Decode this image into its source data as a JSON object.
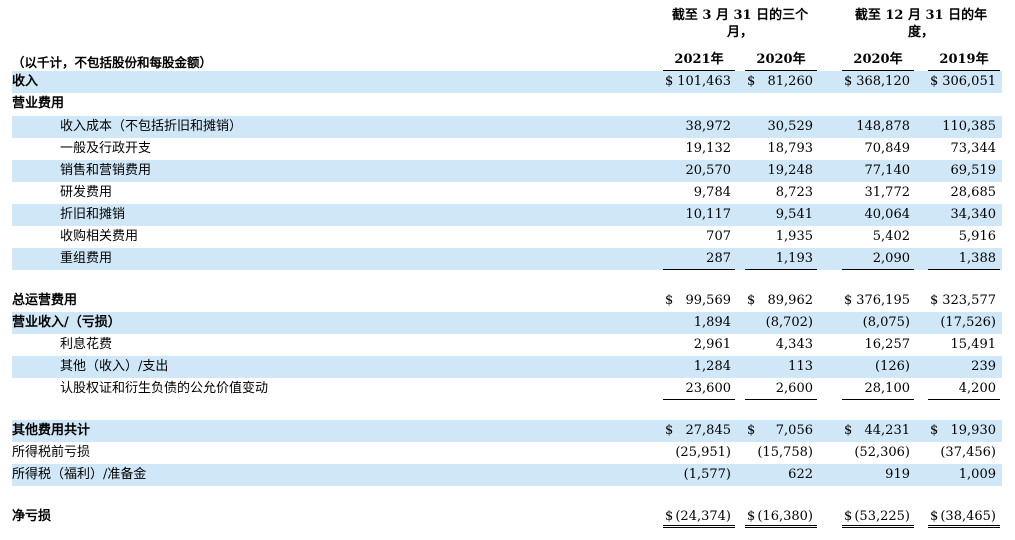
{
  "header": {
    "group_q1": "截至 3 月 31 日的三个月，",
    "group_fy": "截至 12 月 31 日的年度，",
    "units_note": "（以千计，不包括股份和每股金额）",
    "columns": [
      "2021年",
      "2020年",
      "2020年",
      "2019年"
    ]
  },
  "rows": [
    {
      "label": "收入",
      "values": [
        "101,463",
        "81,260",
        "368,120",
        "306,051"
      ],
      "dollar": true
    },
    {
      "label": "营业费用",
      "values": [
        "",
        "",
        "",
        ""
      ]
    },
    {
      "label": "收入成本（不包括折旧和摊销）",
      "values": [
        "38,972",
        "30,529",
        "148,878",
        "110,385"
      ]
    },
    {
      "label": "一般及行政开支",
      "values": [
        "19,132",
        "18,793",
        "70,849",
        "73,344"
      ]
    },
    {
      "label": "销售和营销费用",
      "values": [
        "20,570",
        "19,248",
        "77,140",
        "69,519"
      ]
    },
    {
      "label": "研发费用",
      "values": [
        "9,784",
        "8,723",
        "31,772",
        "28,685"
      ]
    },
    {
      "label": "折旧和摊销",
      "values": [
        "10,117",
        "9,541",
        "40,064",
        "34,340"
      ]
    },
    {
      "label": "收购相关费用",
      "values": [
        "707",
        "1,935",
        "5,402",
        "5,916"
      ]
    },
    {
      "label": "重组费用",
      "values": [
        "287",
        "1,193",
        "2,090",
        "1,388"
      ]
    },
    {
      "label": "总运营费用",
      "values": [
        "99,569",
        "89,962",
        "376,195",
        "323,577"
      ],
      "dollar": true
    },
    {
      "label": "营业收入/（亏损）",
      "values": [
        "1,894",
        "(8,702)",
        "(8,075)",
        "(17,526)"
      ]
    },
    {
      "label": "利息花费",
      "values": [
        "2,961",
        "4,343",
        "16,257",
        "15,491"
      ]
    },
    {
      "label": "其他（收入）/支出",
      "values": [
        "1,284",
        "113",
        "(126)",
        "239"
      ]
    },
    {
      "label": "认股权证和衍生负债的公允价值变动",
      "values": [
        "23,600",
        "2,600",
        "28,100",
        "4,200"
      ]
    },
    {
      "label": "其他费用共计",
      "values": [
        "27,845",
        "7,056",
        "44,231",
        "19,930"
      ],
      "dollar": true
    },
    {
      "label": "所得税前亏损",
      "values": [
        "(25,951)",
        "(15,758)",
        "(52,306)",
        "(37,456)"
      ]
    },
    {
      "label": "所得税（福利）/准备金",
      "values": [
        "(1,577)",
        "622",
        "919",
        "1,009"
      ]
    },
    {
      "label": "净亏损",
      "values": [
        "(24,374)",
        "(16,380)",
        "(53,225)",
        "(38,465)"
      ],
      "dollar": true
    }
  ],
  "currency_symbol": "$",
  "colors": {
    "row_shade": "#cfe7f6"
  }
}
